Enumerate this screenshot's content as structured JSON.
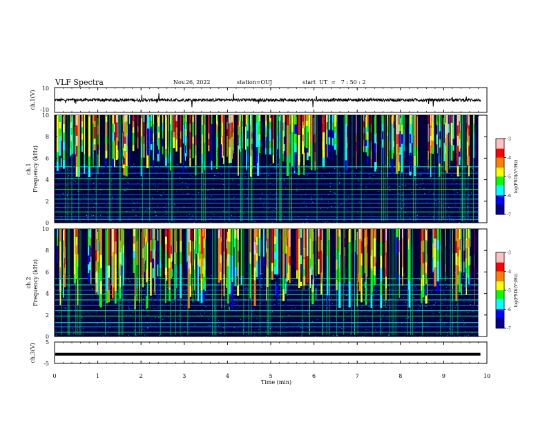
{
  "header": {
    "title": "VLF Spectra",
    "date": "Nov.26, 2022",
    "station": "station=OUJ",
    "start": "start  UT  =   7 : 50 : 2"
  },
  "colors": {
    "colormap": [
      "#00008b",
      "#0000ff",
      "#00ffff",
      "#00ff00",
      "#ffff00",
      "#ff8000",
      "#ff0000",
      "#ffc0c0"
    ],
    "background": "#00003a",
    "trace": "#000000"
  },
  "chart_data": [
    {
      "type": "line",
      "name": "ch1-waveform",
      "ylabel": "ch.1(V)",
      "ylim": [
        -10,
        10
      ],
      "yticks": [
        "10",
        "-10"
      ],
      "xlim": [
        0,
        10
      ],
      "baseline": 0,
      "noise_amplitude_v": 1.2
    },
    {
      "type": "heatmap",
      "name": "ch1-spectrogram",
      "ylabel": "ch.1\nFrequency (kHz)",
      "ylim": [
        0,
        10
      ],
      "yticks": [
        "0",
        "2",
        "4",
        "6",
        "8",
        "10"
      ],
      "xlim": [
        0,
        9.8
      ],
      "colorbar": {
        "label": "log(PSD)(V²/Hz)",
        "range": [
          -7,
          -3
        ],
        "ticks": [
          "-3",
          "-4",
          "-5",
          "-6",
          "-7"
        ]
      }
    },
    {
      "type": "heatmap",
      "name": "ch2-spectrogram",
      "ylabel": "ch.2\nFrequency (kHz)",
      "ylim": [
        0,
        10
      ],
      "yticks": [
        "0",
        "2",
        "4",
        "6",
        "8",
        "10"
      ],
      "xlim": [
        0,
        9.8
      ],
      "colorbar": {
        "label": "log(PSD)(V²/Hz)",
        "range": [
          -7,
          -3
        ],
        "ticks": [
          "-3",
          "-4",
          "-5",
          "-6",
          "-7"
        ]
      }
    },
    {
      "type": "line",
      "name": "ch3-waveform",
      "ylabel": "ch.3(V)",
      "ylim": [
        -5,
        5
      ],
      "yticks": [
        "5",
        "-5"
      ],
      "xlim": [
        0,
        10
      ],
      "baseline": -0.7
    }
  ],
  "xaxis": {
    "label": "Time  (min)",
    "ticks": [
      "0",
      "1",
      "2",
      "3",
      "4",
      "5",
      "6",
      "7",
      "8",
      "9",
      "10"
    ]
  }
}
